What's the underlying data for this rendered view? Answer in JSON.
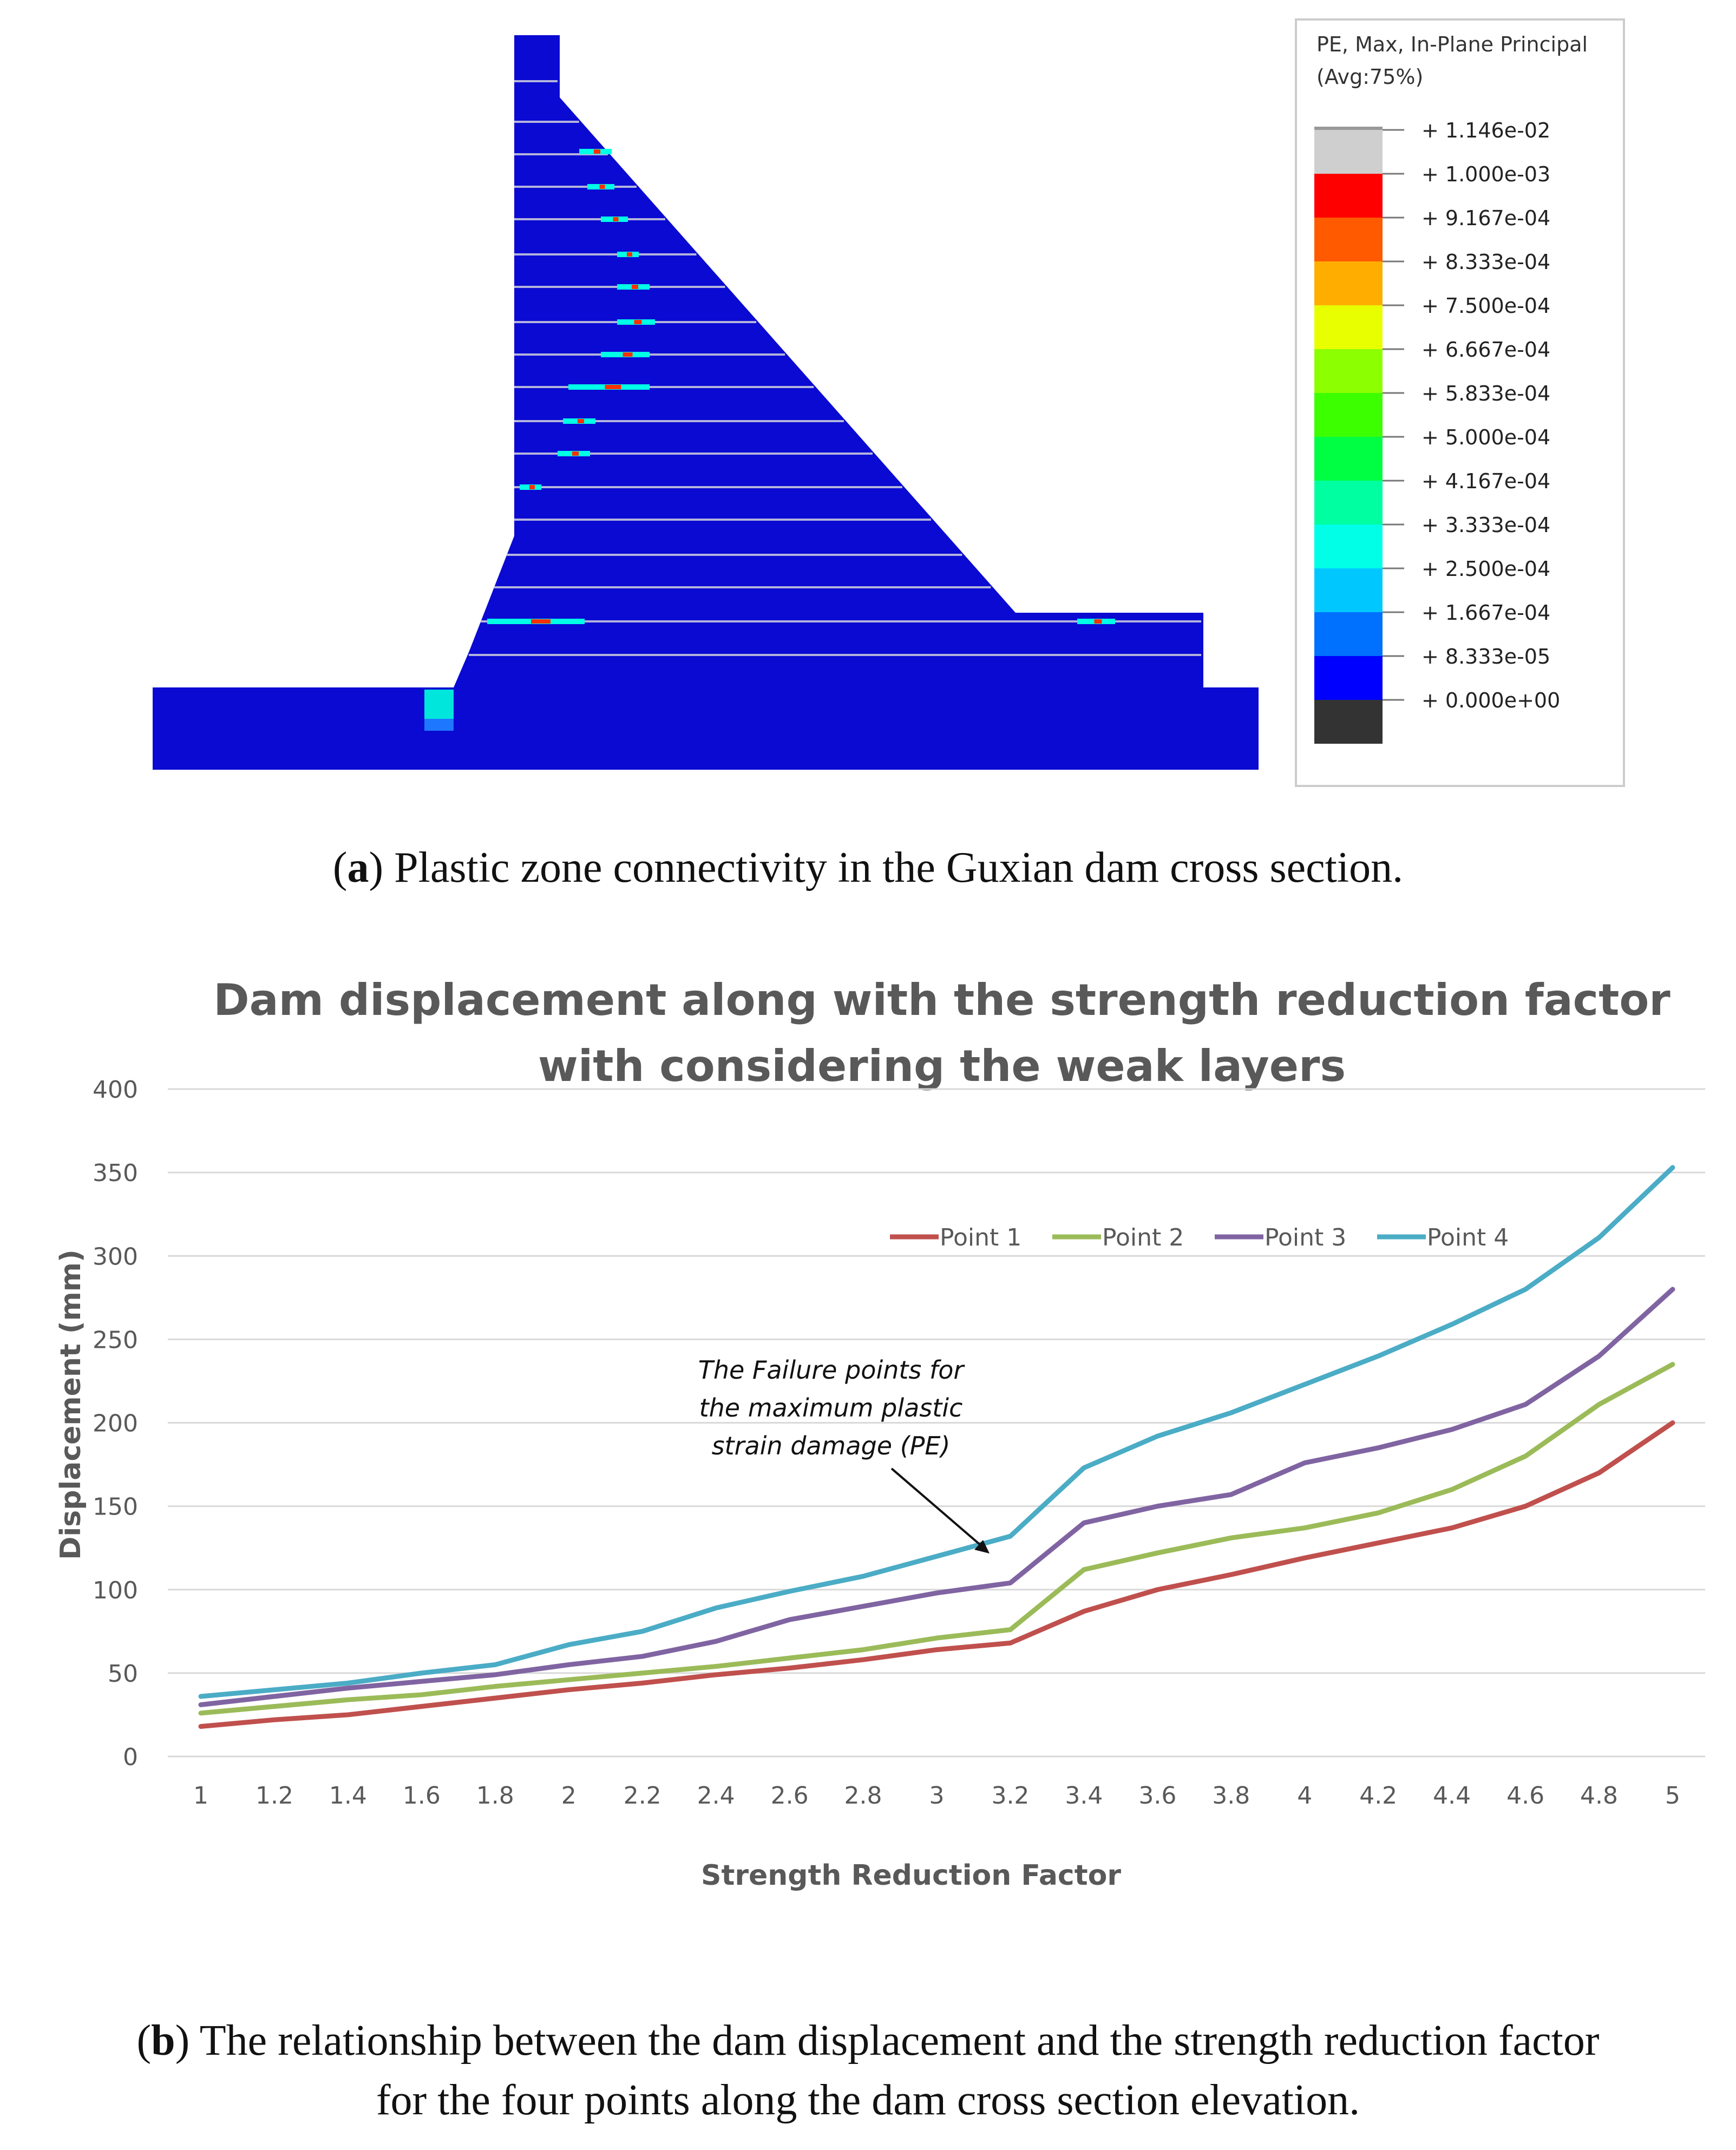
{
  "panel_a": {
    "caption_label": "a",
    "caption_text": "Plastic zone connectivity in the Guxian dam cross section.",
    "legend": {
      "title_line1": "PE, Max, In-Plane Principal",
      "title_line2": "(Avg:75%)",
      "entries": [
        {
          "label": "+ 1.146e-02",
          "color": "#cfcfcf"
        },
        {
          "label": "+ 1.000e-03",
          "color": "#ff0000"
        },
        {
          "label": "+ 9.167e-04",
          "color": "#ff5a00"
        },
        {
          "label": "+ 8.333e-04",
          "color": "#ffae00"
        },
        {
          "label": "+ 7.500e-04",
          "color": "#e8ff00"
        },
        {
          "label": "+ 6.667e-04",
          "color": "#8cff00"
        },
        {
          "label": "+ 5.833e-04",
          "color": "#3cff00"
        },
        {
          "label": "+ 5.000e-04",
          "color": "#00ff42"
        },
        {
          "label": "+ 4.167e-04",
          "color": "#00ffa0"
        },
        {
          "label": "+ 3.333e-04",
          "color": "#00ffe6"
        },
        {
          "label": "+ 2.500e-04",
          "color": "#00c8ff"
        },
        {
          "label": "+ 1.667e-04",
          "color": "#0070ff"
        },
        {
          "label": "+ 8.333e-05",
          "color": "#0000ff"
        },
        {
          "label": "+ 0.000e+00",
          "color": "#333333"
        }
      ]
    },
    "dam_color": "#0a0ad2"
  },
  "panel_b": {
    "caption_label": "b",
    "caption_line1": "The relationship between the dam displacement and the strength reduction factor",
    "caption_line2": "for the four points along the dam cross section elevation."
  },
  "chart_data": {
    "type": "line",
    "title_line1": "Dam displacement along with the strength reduction factor",
    "title_line2": "with considering the weak layers",
    "xlabel": "Strength Reduction Factor",
    "ylabel": "Displacement (mm)",
    "ylim": [
      0,
      400
    ],
    "yticks": [
      0,
      50,
      100,
      150,
      200,
      250,
      300,
      350,
      400
    ],
    "categories": [
      "1",
      "1.2",
      "1.4",
      "1.6",
      "1.8",
      "2",
      "2.2",
      "2.4",
      "2.6",
      "2.8",
      "3",
      "3.2",
      "3.4",
      "3.6",
      "3.8",
      "4",
      "4.2",
      "4.4",
      "4.6",
      "4.8",
      "5"
    ],
    "grid": true,
    "legend_position": "top-right",
    "series": [
      {
        "name": "Point 1",
        "color": "#c0504d",
        "values": [
          18,
          22,
          25,
          30,
          35,
          40,
          44,
          49,
          53,
          58,
          64,
          68,
          87,
          100,
          109,
          119,
          128,
          137,
          150,
          170,
          200
        ]
      },
      {
        "name": "Point 2",
        "color": "#9bbb59",
        "values": [
          26,
          30,
          34,
          37,
          42,
          46,
          50,
          54,
          59,
          64,
          71,
          76,
          112,
          122,
          131,
          137,
          146,
          160,
          180,
          211,
          235
        ]
      },
      {
        "name": "Point 3",
        "color": "#8064a2",
        "values": [
          31,
          36,
          41,
          45,
          49,
          55,
          60,
          69,
          82,
          90,
          98,
          104,
          140,
          150,
          157,
          176,
          185,
          196,
          211,
          240,
          280
        ]
      },
      {
        "name": "Point 4",
        "color": "#4bacc6",
        "values": [
          36,
          40,
          44,
          50,
          55,
          67,
          75,
          89,
          99,
          108,
          120,
          132,
          173,
          192,
          206,
          223,
          240,
          259,
          280,
          311,
          353
        ]
      }
    ],
    "annotation": {
      "line1": "The Failure points for",
      "line2": "the maximum plastic",
      "line3": "strain damage (PE)"
    }
  }
}
